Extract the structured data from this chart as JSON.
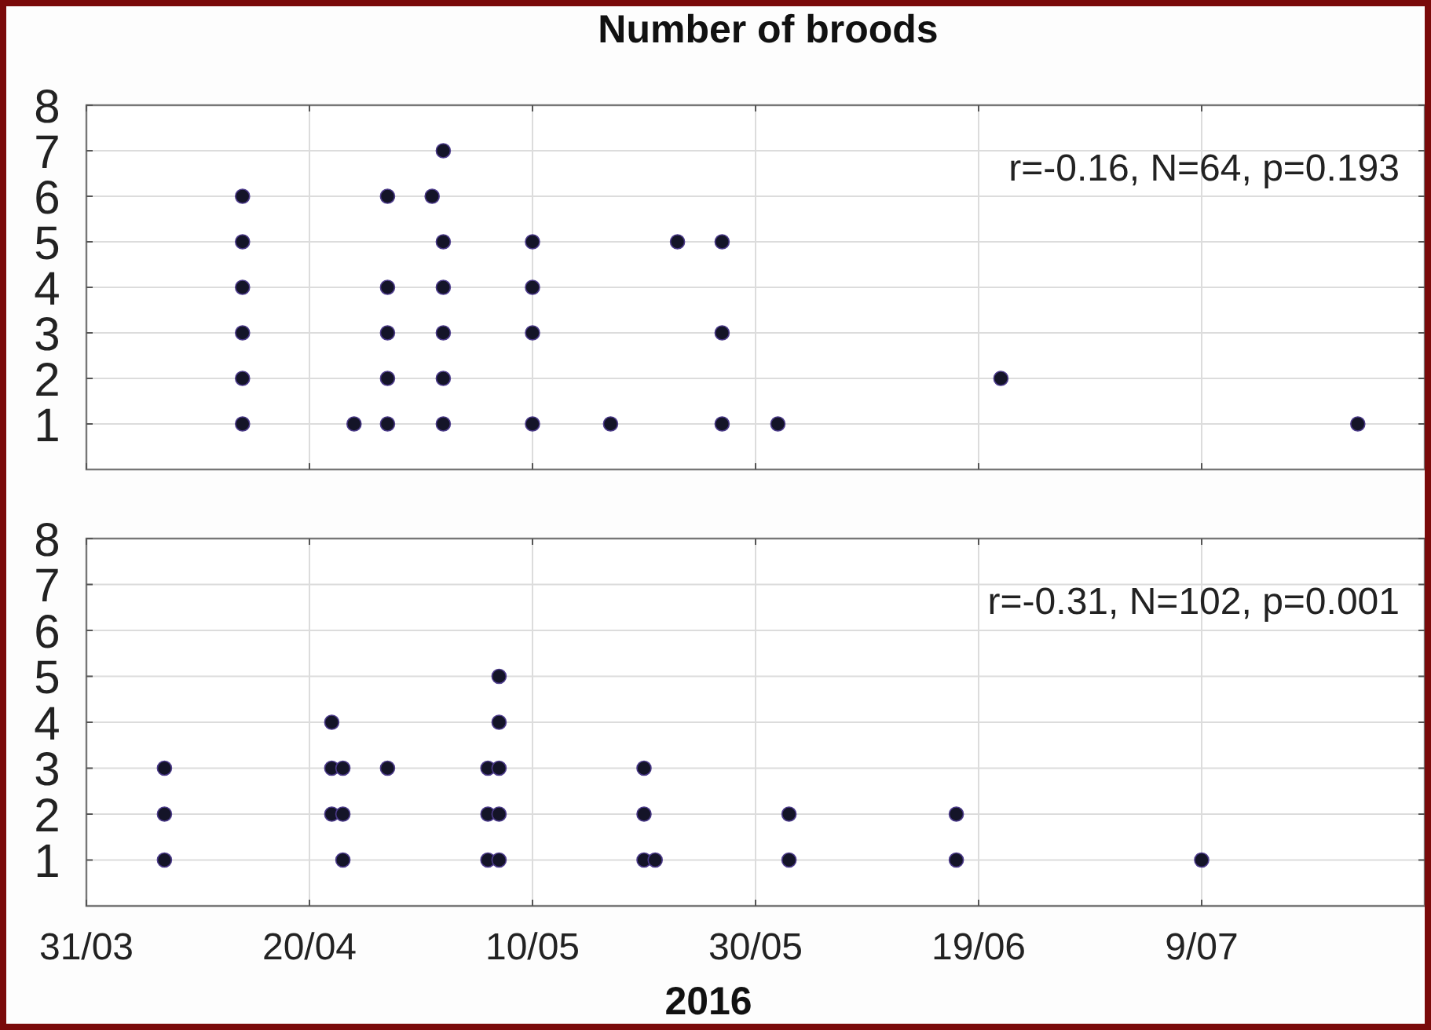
{
  "chart_data": [
    {
      "type": "scatter",
      "title": "Number of broods",
      "annotations": [
        "r=-0.16, N=64, p=0.193"
      ],
      "xlim": [
        "2016-03-31",
        "2016-07-29"
      ],
      "xticks": [
        {
          "value": "2016-03-31",
          "label": null
        },
        {
          "value": "2016-04-20",
          "label": null
        },
        {
          "value": "2016-05-10",
          "label": null
        },
        {
          "value": "2016-05-30",
          "label": null
        },
        {
          "value": "2016-06-19",
          "label": null
        },
        {
          "value": "2016-07-09",
          "label": null
        }
      ],
      "ylim": [
        0,
        8
      ],
      "yticks": [
        1,
        2,
        3,
        4,
        5,
        6,
        7,
        8
      ],
      "tick_labels": "y",
      "grid": true,
      "marker": "circle",
      "series": [
        {
          "color": "#141428",
          "x": [
            "2016-04-14",
            "2016-04-14",
            "2016-04-14",
            "2016-04-14",
            "2016-04-14",
            "2016-04-14",
            "2016-04-24",
            "2016-04-27",
            "2016-04-27",
            "2016-04-27",
            "2016-04-27",
            "2016-04-27",
            "2016-05-01",
            "2016-05-02",
            "2016-05-02",
            "2016-05-02",
            "2016-05-02",
            "2016-05-02",
            "2016-05-02",
            "2016-05-10",
            "2016-05-10",
            "2016-05-10",
            "2016-05-10",
            "2016-05-17",
            "2016-05-23",
            "2016-05-27",
            "2016-05-27",
            "2016-05-27",
            "2016-06-01",
            "2016-06-21",
            "2016-07-23"
          ],
          "values": [
            1,
            2,
            3,
            4,
            5,
            6,
            1,
            1,
            2,
            3,
            4,
            6,
            6,
            1,
            2,
            3,
            4,
            5,
            7,
            1,
            3,
            4,
            5,
            1,
            5,
            1,
            3,
            5,
            1,
            2,
            1
          ]
        }
      ]
    },
    {
      "type": "scatter",
      "xlabel": "2016",
      "annotations": [
        "r=-0.31, N=102, p=0.001"
      ],
      "xlim": [
        "2016-03-31",
        "2016-07-29"
      ],
      "xticks": [
        {
          "value": "2016-03-31",
          "label": "31/03"
        },
        {
          "value": "2016-04-20",
          "label": "20/04"
        },
        {
          "value": "2016-05-10",
          "label": "10/05"
        },
        {
          "value": "2016-05-30",
          "label": "30/05"
        },
        {
          "value": "2016-06-19",
          "label": "19/06"
        },
        {
          "value": "2016-07-09",
          "label": "9/07"
        }
      ],
      "ylim": [
        0,
        8
      ],
      "yticks": [
        1,
        2,
        3,
        4,
        5,
        6,
        7,
        8
      ],
      "grid": true,
      "marker": "circle",
      "series": [
        {
          "color": "#141428",
          "x": [
            "2016-04-07",
            "2016-04-07",
            "2016-04-07",
            "2016-04-22",
            "2016-04-22",
            "2016-04-22",
            "2016-04-23",
            "2016-04-23",
            "2016-04-23",
            "2016-04-27",
            "2016-05-06",
            "2016-05-06",
            "2016-05-06",
            "2016-05-07",
            "2016-05-07",
            "2016-05-07",
            "2016-05-07",
            "2016-05-07",
            "2016-05-20",
            "2016-05-20",
            "2016-05-20",
            "2016-05-21",
            "2016-06-02",
            "2016-06-02",
            "2016-06-17",
            "2016-06-17",
            "2016-07-09"
          ],
          "values": [
            1,
            2,
            3,
            2,
            3,
            4,
            1,
            2,
            3,
            3,
            1,
            2,
            3,
            1,
            2,
            3,
            4,
            5,
            1,
            2,
            3,
            1,
            1,
            2,
            1,
            2,
            1
          ]
        }
      ]
    }
  ]
}
